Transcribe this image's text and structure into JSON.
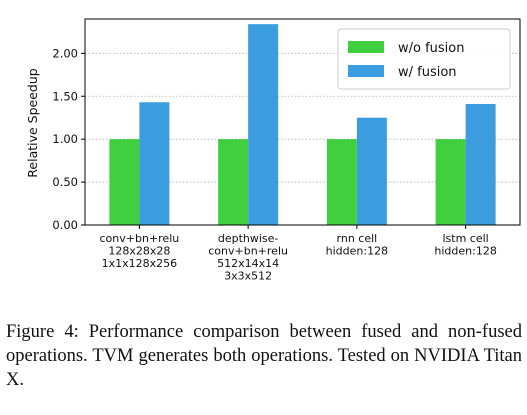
{
  "chart_data": {
    "type": "bar",
    "categories": [
      [
        "conv+bn+relu",
        "128x28x28",
        "1x1x128x256"
      ],
      [
        "depthwise-",
        "conv+bn+relu",
        "512x14x14",
        "3x3x512"
      ],
      [
        "rnn cell",
        "hidden:128"
      ],
      [
        "lstm cell",
        "hidden:128"
      ]
    ],
    "series": [
      {
        "name": "w/o fusion",
        "color": "#3fcf3f",
        "values": [
          1.0,
          1.0,
          1.0,
          1.0
        ]
      },
      {
        "name": "w/ fusion",
        "color": "#3b9de0",
        "values": [
          1.43,
          2.34,
          1.25,
          1.41
        ]
      }
    ],
    "ylabel": "Relative Speedup",
    "ylim": [
      0,
      2.4
    ],
    "yticks": [
      "0.00",
      "0.50",
      "1.00",
      "1.50",
      "2.00"
    ],
    "grid": "horizontal dotted",
    "legend_position": "top-right"
  },
  "caption": "Figure 4: Performance comparison between fused and non-fused operations. TVM generates both operations. Tested on NVIDIA Titan X."
}
